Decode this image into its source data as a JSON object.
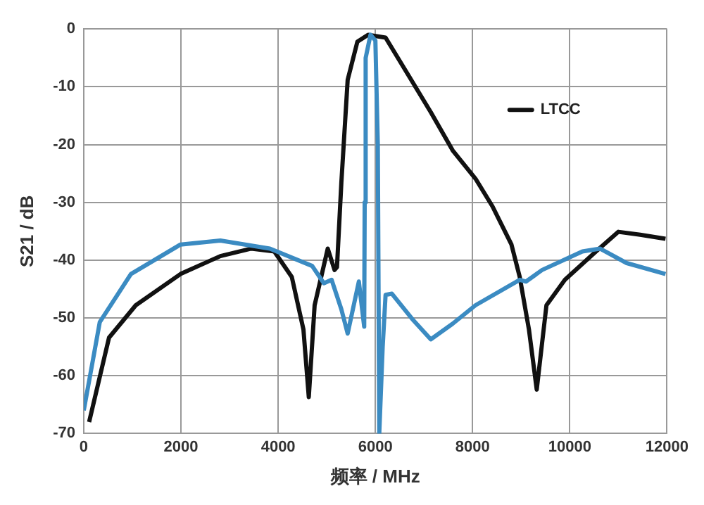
{
  "chart_data": {
    "type": "line",
    "xlabel": "频率 / MHz",
    "ylabel": "S21 / dB",
    "xlim": [
      0,
      12000
    ],
    "xticks": [
      0,
      2000,
      4000,
      6000,
      8000,
      10000,
      12000
    ],
    "ylim": [
      -70,
      0
    ],
    "yticks": [
      -70,
      -60,
      -50,
      -40,
      -30,
      -20,
      -10,
      0
    ],
    "grid": true,
    "legend": "top right",
    "marker": "none",
    "line_style": "solid",
    "series": [
      {
        "color": "#3b8bc2",
        "x": [
          0,
          330,
          970,
          1990,
          2810,
          3830,
          4700,
          4940,
          5100,
          5300,
          5430,
          5660,
          5770,
          5780,
          5800,
          5900,
          6000,
          6050,
          6080,
          6150,
          6210,
          6340,
          6760,
          7140,
          7590,
          8060,
          8970,
          9100,
          9430,
          10260,
          10620,
          11170,
          11970
        ],
        "values": [
          -66,
          -50.7,
          -42.4,
          -37.3,
          -36.6,
          -38,
          -41,
          -44,
          -43.4,
          -48.5,
          -52.7,
          -43.7,
          -51.5,
          -30,
          -5,
          -1,
          -2,
          -20,
          -70,
          -55,
          -46,
          -45.8,
          -50.2,
          -53.7,
          -51,
          -47.8,
          -43.4,
          -43.7,
          -41.7,
          -38.5,
          -38,
          -40.5,
          -42.4
        ]
      },
      {
        "name": "LTCC",
        "color": "#111111",
        "x": [
          110,
          520,
          1070,
          1990,
          2810,
          3450,
          3920,
          4280,
          4520,
          4630,
          4750,
          5020,
          5160,
          5210,
          5300,
          5430,
          5630,
          5850,
          6210,
          6680,
          7140,
          7590,
          8060,
          8410,
          8800,
          8970,
          9160,
          9320,
          9520,
          9900,
          10540,
          11000,
          11450,
          11970
        ],
        "values": [
          -68,
          -53.4,
          -47.8,
          -42.4,
          -39.3,
          -38,
          -38.5,
          -42.9,
          -52,
          -63.7,
          -47.8,
          -38,
          -41.7,
          -41.2,
          -26.6,
          -8.8,
          -2.2,
          -1,
          -1.5,
          -8,
          -14.4,
          -21,
          -25.9,
          -30.7,
          -37.3,
          -42.9,
          -52,
          -62.4,
          -47.8,
          -43.4,
          -38.5,
          -35.1,
          -35.6,
          -36.3
        ]
      }
    ]
  }
}
